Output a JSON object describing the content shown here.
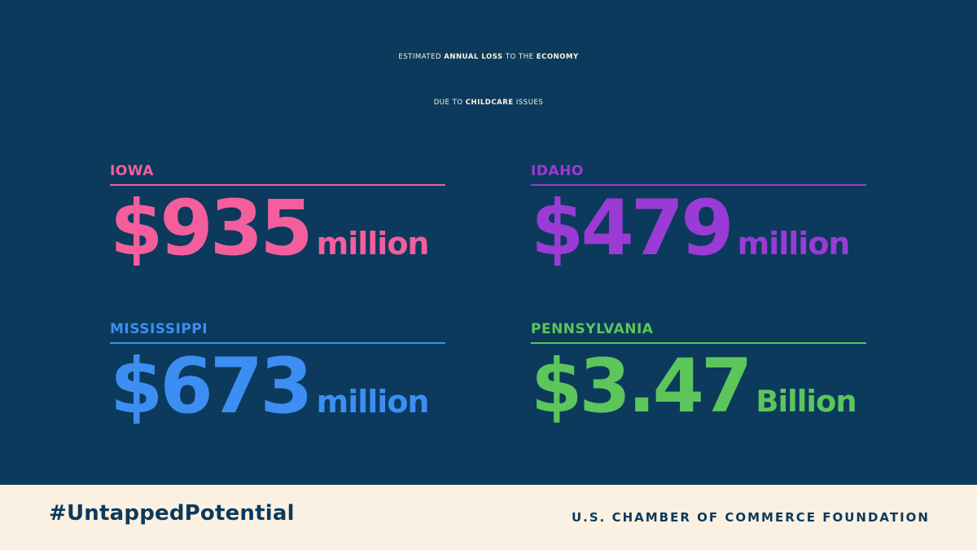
{
  "headline": {
    "line1": {
      "part1": "ESTIMATED ",
      "part2": "ANNUAL LOSS",
      "part3": " TO THE ",
      "part4": "ECONOMY"
    },
    "line2": {
      "part1": "DUE TO ",
      "part2": "CHILDCARE",
      "part3": " ISSUES"
    }
  },
  "stats": {
    "iowa": {
      "state": "IOWA",
      "amount": "$935",
      "unit": "million",
      "color": "#f45e9c"
    },
    "idaho": {
      "state": "IDAHO",
      "amount": "$479",
      "unit": "million",
      "color": "#9a3bd6"
    },
    "mississippi": {
      "state": "MISSISSIPPI",
      "amount": "$673",
      "unit": "million",
      "color": "#3d8ef2"
    },
    "pennsylvania": {
      "state": "PENNSYLVANIA",
      "amount": "$3.47",
      "unit": "Billion",
      "color": "#5cc55c"
    }
  },
  "footer": {
    "hashtag": "#UntappedPotential",
    "organization": "U.S. CHAMBER OF COMMERCE FOUNDATION"
  },
  "colors": {
    "background": "#0b3a5c",
    "headline_text": "#fbf3de",
    "footer_background": "#fbf1e3",
    "footer_text": "#0b3a5c"
  }
}
